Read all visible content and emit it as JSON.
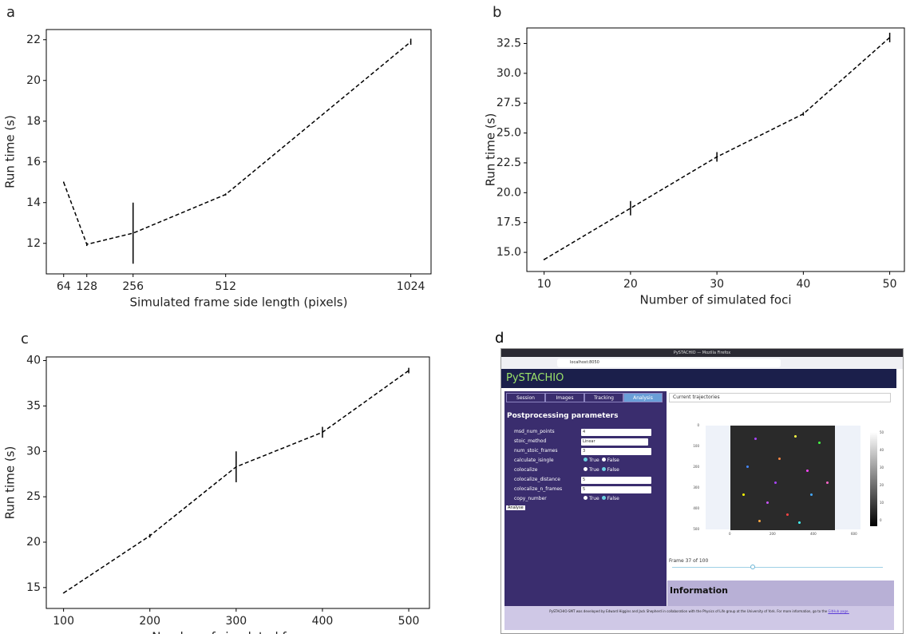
{
  "chart_data": [
    {
      "type": "line",
      "panel_label": "a",
      "xlabel": "Simulated frame side length (pixels)",
      "ylabel": "Run time (s)",
      "x": [
        64,
        128,
        256,
        512,
        1024
      ],
      "values": [
        15.0,
        11.95,
        12.5,
        14.4,
        21.9
      ],
      "errors": [
        0.03,
        0.08,
        1.5,
        0.05,
        0.15
      ],
      "color": "#000000",
      "xlim": [
        16,
        1080
      ],
      "ylim": [
        10.5,
        22.5
      ],
      "xticks": [
        64,
        128,
        256,
        512,
        1024
      ],
      "yticks": [
        12,
        14,
        16,
        18,
        20,
        22
      ]
    },
    {
      "type": "line",
      "panel_label": "b",
      "xlabel": "Number of simulated foci",
      "ylabel": "Run time (s)",
      "x": [
        10,
        20,
        30,
        40,
        50
      ],
      "values": [
        14.4,
        18.7,
        23.0,
        26.6,
        33.0
      ],
      "errors": [
        0.05,
        0.6,
        0.4,
        0.15,
        0.4
      ],
      "color": "#000000",
      "xlim": [
        8,
        51.7
      ],
      "ylim": [
        13.4,
        33.8
      ],
      "xticks": [
        10,
        20,
        30,
        40,
        50
      ],
      "yticks": [
        {
          "value": 15,
          "label": "15.0"
        },
        17.5,
        {
          "value": 20,
          "label": "20.0"
        },
        22.5,
        {
          "value": 25,
          "label": "25.0"
        },
        27.5,
        {
          "value": 30,
          "label": "30.0"
        },
        32.5
      ]
    },
    {
      "type": "line",
      "panel_label": "c",
      "xlabel": "Number of simulated frames",
      "ylabel": "Run time (s)",
      "x": [
        100,
        200,
        300,
        400,
        500
      ],
      "values": [
        14.4,
        20.7,
        28.3,
        32.1,
        38.9
      ],
      "errors": [
        0.05,
        0.2,
        1.7,
        0.6,
        0.3
      ],
      "color": "#000000",
      "xlim": [
        80,
        524
      ],
      "ylim": [
        12.7,
        40.4
      ],
      "xticks": [
        100,
        200,
        300,
        400,
        500
      ],
      "yticks": [
        15,
        20,
        25,
        30,
        35,
        40
      ]
    }
  ],
  "screenshot": {
    "panel_label": "d",
    "window_title": "PySTACHIO — Mozilla Firefox",
    "url": "localhost:8050",
    "app_title": "PySTACHIO",
    "tabs": [
      "Session",
      "Images",
      "Tracking",
      "Analysis"
    ],
    "heading": "Postprocessing parameters",
    "params": [
      {
        "name": "msd_num_points",
        "value": "4"
      },
      {
        "name": "stoic_method",
        "value": "Linear"
      },
      {
        "name": "num_stoic_frames",
        "value": "3"
      },
      {
        "name": "calculate_isingle",
        "options": [
          "True",
          "False"
        ],
        "selected": "True"
      },
      {
        "name": "colocalize",
        "options": [
          "True",
          "False"
        ],
        "selected": "False"
      },
      {
        "name": "colocalize_distance",
        "value": "5"
      },
      {
        "name": "colocalize_n_frames",
        "value": "5"
      },
      {
        "name": "copy_number",
        "options": [
          "True",
          "False"
        ],
        "selected": "False"
      }
    ],
    "button": "Analyse",
    "dropdown": "Current trajectories",
    "image_yticks": [
      "0",
      "100",
      "200",
      "300",
      "400",
      "500"
    ],
    "image_xticks": [
      "0",
      "200",
      "400",
      "600"
    ],
    "colorbar_ticks": [
      "50",
      "40",
      "30",
      "20",
      "10",
      "0"
    ],
    "frame_label": "Frame 37 of 100",
    "info_heading": "Information",
    "footer": "PySTACHIO-SMT was developed by Edward Higgins and Jack Shepherd in collaboration with the Physics of Life group at the University of York. For more information, go to the",
    "footer_link": "GitHub page."
  }
}
